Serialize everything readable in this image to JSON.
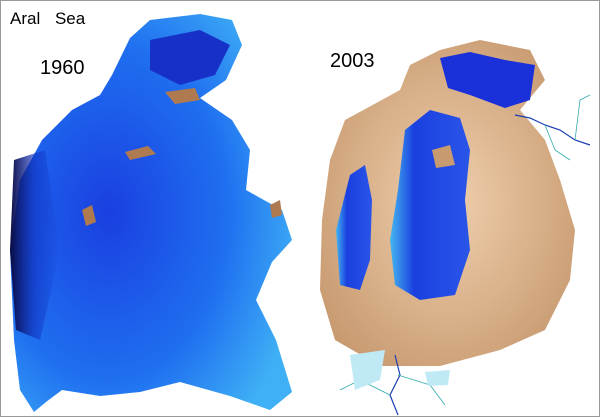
{
  "title": "Aral Sea",
  "labels": [
    "1960",
    "2003"
  ]
}
